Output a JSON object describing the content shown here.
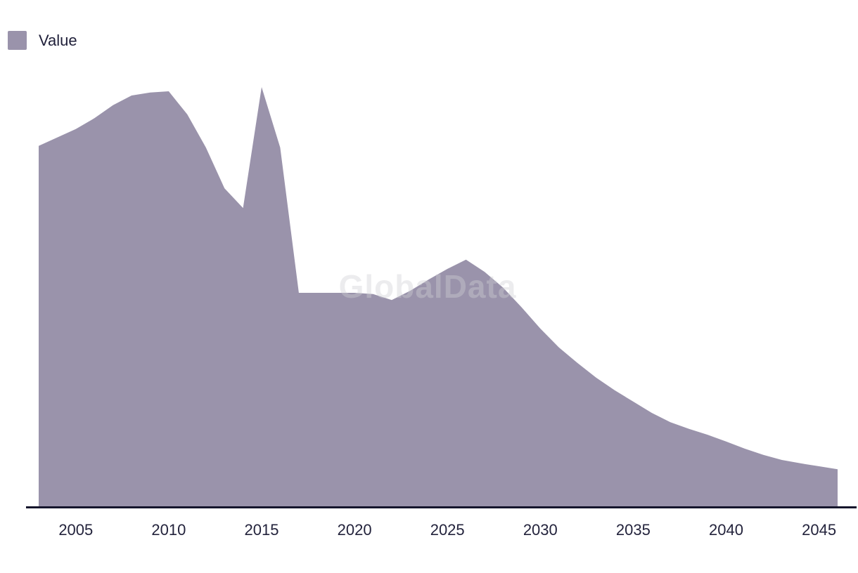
{
  "legend": {
    "label": "Value",
    "swatch_color": "#9a93ab"
  },
  "watermark": {
    "text": "GlobalData",
    "color": "rgba(208,208,213,0.40)"
  },
  "colors": {
    "area_fill": "#9a93ab",
    "axis_line": "#15152c",
    "label_text": "#23233c"
  },
  "chart_data": {
    "type": "area",
    "title": "",
    "xlabel": "",
    "ylabel": "",
    "grid": false,
    "y_axis_visible": false,
    "legend_position": "top-left",
    "x_range": [
      2003,
      2046
    ],
    "y_range": [
      0,
      100
    ],
    "x_ticks": [
      "2005",
      "2010",
      "2015",
      "2020",
      "2025",
      "2030",
      "2035",
      "2040",
      "2045"
    ],
    "x_tick_years": [
      2005,
      2010,
      2015,
      2020,
      2025,
      2030,
      2035,
      2040,
      2045
    ],
    "series": [
      {
        "name": "Value",
        "color": "#9a93ab",
        "x": [
          2003,
          2004,
          2005,
          2006,
          2007,
          2008,
          2009,
          2010,
          2011,
          2012,
          2013,
          2014,
          2015,
          2016,
          2017,
          2018,
          2019,
          2020,
          2021,
          2022,
          2023,
          2024,
          2025,
          2026,
          2027,
          2028,
          2029,
          2030,
          2031,
          2032,
          2033,
          2034,
          2035,
          2036,
          2037,
          2038,
          2039,
          2040,
          2041,
          2042,
          2043,
          2044,
          2045,
          2046
        ],
        "values": [
          86.0,
          88.0,
          90.0,
          92.6,
          95.7,
          98.0,
          98.7,
          99.0,
          93.5,
          85.6,
          75.9,
          71.2,
          100.0,
          85.6,
          51.0,
          51.0,
          51.0,
          51.0,
          50.7,
          49.3,
          51.5,
          54.2,
          56.7,
          58.9,
          56.0,
          52.2,
          47.5,
          42.5,
          38.0,
          34.3,
          30.8,
          27.8,
          25.1,
          22.4,
          20.2,
          18.6,
          17.2,
          15.6,
          13.9,
          12.4,
          11.2,
          10.4,
          9.7,
          9.0
        ]
      }
    ]
  }
}
